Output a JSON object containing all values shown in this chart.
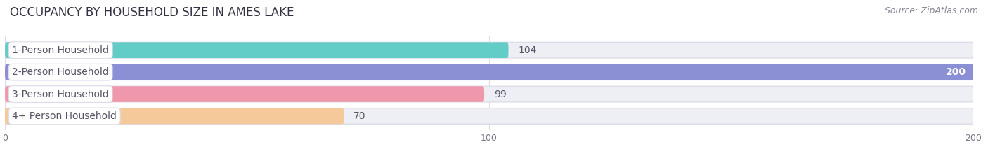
{
  "title": "OCCUPANCY BY HOUSEHOLD SIZE IN AMES LAKE",
  "source": "Source: ZipAtlas.com",
  "categories": [
    "1-Person Household",
    "2-Person Household",
    "3-Person Household",
    "4+ Person Household"
  ],
  "values": [
    104,
    200,
    99,
    70
  ],
  "bar_colors": [
    "#62CCC6",
    "#8B8FD4",
    "#F098AB",
    "#F5C99A"
  ],
  "bar_bg_color": "#EEEEF5",
  "bar_border_color": "#DDDDEA",
  "xlim": [
    0,
    200
  ],
  "xticks": [
    0,
    100,
    200
  ],
  "label_text_color": "#555566",
  "value_text_color": "#555566",
  "title_fontsize": 12,
  "source_fontsize": 9,
  "label_fontsize": 10,
  "value_fontsize": 10,
  "bg_color": "#FFFFFF"
}
